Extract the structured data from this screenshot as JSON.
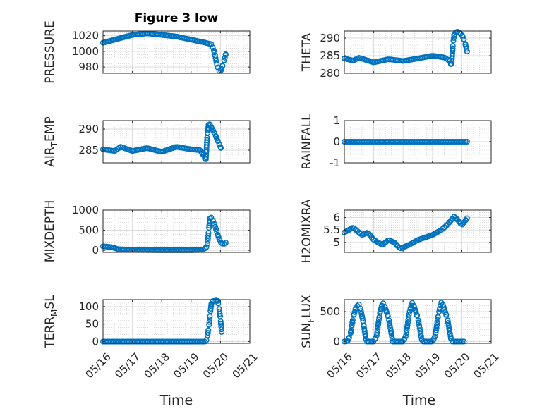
{
  "title": "Figure 3 low",
  "colors": {
    "marker": "#0072BD",
    "axis": "#262626",
    "grid": "#c8c8c8"
  },
  "chart_data": [
    {
      "type": "scatter",
      "ylabel": "PRESSURE",
      "ylim": [
        972,
        1026
      ],
      "yticks": [
        980,
        1000,
        1020
      ],
      "ytick_labels": [
        "980",
        "1000",
        "1020"
      ],
      "show_xticklabels": false,
      "anchors": [
        [
          0,
          1011
        ],
        [
          0.3,
          1014
        ],
        [
          0.6,
          1017
        ],
        [
          1.0,
          1021
        ],
        [
          1.5,
          1023
        ],
        [
          2.0,
          1021
        ],
        [
          2.5,
          1019
        ],
        [
          3.0,
          1015
        ],
        [
          3.5,
          1011
        ],
        [
          3.7,
          1009
        ],
        [
          3.75,
          1004
        ],
        [
          3.8,
          998
        ],
        [
          3.85,
          988
        ],
        [
          3.9,
          980
        ],
        [
          3.95,
          975
        ],
        [
          4.0,
          974
        ],
        [
          4.1,
          985
        ],
        [
          4.2,
          999
        ]
      ]
    },
    {
      "type": "scatter",
      "ylabel": "THETA",
      "ylim": [
        280,
        292
      ],
      "yticks": [
        280,
        285,
        290
      ],
      "ytick_labels": [
        "280",
        "285",
        "290"
      ],
      "show_xticklabels": false,
      "anchors": [
        [
          0,
          284.2
        ],
        [
          0.3,
          283.6
        ],
        [
          0.5,
          284.4
        ],
        [
          1.0,
          283.1
        ],
        [
          1.5,
          284.0
        ],
        [
          2.0,
          283.5
        ],
        [
          2.5,
          284.2
        ],
        [
          3.0,
          285.0
        ],
        [
          3.4,
          284.5
        ],
        [
          3.6,
          283.5
        ],
        [
          3.65,
          282.0
        ],
        [
          3.7,
          288.5
        ],
        [
          3.75,
          291.5
        ],
        [
          3.85,
          291.8
        ],
        [
          4.0,
          291.0
        ],
        [
          4.1,
          289.0
        ],
        [
          4.2,
          285.5
        ]
      ]
    },
    {
      "type": "scatter",
      "ylabel": "AIR_TEMP",
      "ylim": [
        282,
        292
      ],
      "yticks": [
        285,
        290
      ],
      "ytick_labels": [
        "285",
        "290"
      ],
      "show_xticklabels": false,
      "anchors": [
        [
          0,
          285.2
        ],
        [
          0.4,
          284.8
        ],
        [
          0.6,
          285.8
        ],
        [
          1.0,
          284.8
        ],
        [
          1.5,
          285.5
        ],
        [
          2.0,
          284.6
        ],
        [
          2.5,
          285.8
        ],
        [
          3.0,
          285.2
        ],
        [
          3.3,
          285.0
        ],
        [
          3.45,
          283.5
        ],
        [
          3.5,
          282.3
        ],
        [
          3.55,
          288.5
        ],
        [
          3.6,
          291.5
        ],
        [
          3.8,
          289.0
        ],
        [
          3.95,
          286.5
        ],
        [
          4.05,
          285.0
        ]
      ]
    },
    {
      "type": "scatter",
      "ylabel": "RAINFALL",
      "ylim": [
        -1,
        1
      ],
      "yticks": [
        -1,
        0,
        1
      ],
      "ytick_labels": [
        "-1",
        "0",
        "1"
      ],
      "show_xticklabels": false,
      "anchors": [
        [
          0,
          0
        ],
        [
          4.2,
          0
        ]
      ]
    },
    {
      "type": "scatter",
      "ylabel": "MIXDEPTH",
      "ylim": [
        -50,
        1000
      ],
      "yticks": [
        0,
        500,
        1000
      ],
      "ytick_labels": [
        "0",
        "500",
        "1000"
      ],
      "show_xticklabels": false,
      "anchors": [
        [
          0,
          100
        ],
        [
          0.3,
          80
        ],
        [
          0.5,
          30
        ],
        [
          1.0,
          10
        ],
        [
          2.0,
          5
        ],
        [
          3.0,
          5
        ],
        [
          3.4,
          10
        ],
        [
          3.55,
          100
        ],
        [
          3.6,
          500
        ],
        [
          3.65,
          850
        ],
        [
          3.7,
          800
        ],
        [
          3.8,
          650
        ],
        [
          3.9,
          400
        ],
        [
          4.0,
          200
        ],
        [
          4.1,
          150
        ],
        [
          4.2,
          200
        ]
      ]
    },
    {
      "type": "scatter",
      "ylabel": "H2OMIXRA",
      "ylim": [
        4.6,
        6.3
      ],
      "yticks": [
        5,
        5.5,
        6
      ],
      "ytick_labels": [
        "5",
        "5.5",
        "6"
      ],
      "show_xticklabels": false,
      "anchors": [
        [
          0,
          5.4
        ],
        [
          0.3,
          5.6
        ],
        [
          0.6,
          5.3
        ],
        [
          0.8,
          5.4
        ],
        [
          1.0,
          5.1
        ],
        [
          1.3,
          4.9
        ],
        [
          1.5,
          5.1
        ],
        [
          1.7,
          5.0
        ],
        [
          1.9,
          4.75
        ],
        [
          2.2,
          4.9
        ],
        [
          2.5,
          5.1
        ],
        [
          3.0,
          5.3
        ],
        [
          3.3,
          5.5
        ],
        [
          3.5,
          5.7
        ],
        [
          3.75,
          6.05
        ],
        [
          4.0,
          5.7
        ],
        [
          4.2,
          6.0
        ]
      ]
    },
    {
      "type": "scatter",
      "ylabel": "TERR_MSL",
      "ylim": [
        -5,
        120
      ],
      "yticks": [
        0,
        50,
        100
      ],
      "ytick_labels": [
        "0",
        "50",
        "100"
      ],
      "show_xticklabels": true,
      "anchors": [
        [
          0,
          0
        ],
        [
          3.5,
          0
        ],
        [
          3.55,
          10
        ],
        [
          3.6,
          40
        ],
        [
          3.65,
          80
        ],
        [
          3.7,
          115
        ],
        [
          3.9,
          118
        ],
        [
          3.95,
          100
        ],
        [
          4.0,
          65
        ],
        [
          4.05,
          20
        ]
      ]
    },
    {
      "type": "scatter",
      "ylabel": "SUN_FLUX",
      "ylim": [
        -30,
        700
      ],
      "yticks": [
        0,
        500
      ],
      "ytick_labels": [
        "0",
        "500"
      ],
      "show_xticklabels": true,
      "anchors": [
        [
          0,
          0
        ],
        [
          0.1,
          5
        ],
        [
          0.2,
          100
        ],
        [
          0.3,
          400
        ],
        [
          0.4,
          580
        ],
        [
          0.5,
          620
        ],
        [
          0.55,
          550
        ],
        [
          0.65,
          300
        ],
        [
          0.75,
          0
        ],
        [
          1.0,
          0
        ],
        [
          1.1,
          100
        ],
        [
          1.2,
          450
        ],
        [
          1.3,
          650
        ],
        [
          1.35,
          620
        ],
        [
          1.5,
          400
        ],
        [
          1.65,
          0
        ],
        [
          2.0,
          0
        ],
        [
          2.1,
          100
        ],
        [
          2.2,
          450
        ],
        [
          2.3,
          650
        ],
        [
          2.35,
          620
        ],
        [
          2.5,
          400
        ],
        [
          2.65,
          0
        ],
        [
          3.0,
          0
        ],
        [
          3.1,
          100
        ],
        [
          3.2,
          450
        ],
        [
          3.3,
          650
        ],
        [
          3.35,
          620
        ],
        [
          3.5,
          400
        ],
        [
          3.65,
          0
        ],
        [
          4.0,
          0
        ],
        [
          4.1,
          0
        ]
      ]
    }
  ],
  "xaxis": {
    "xlabel": "Time",
    "xlim": [
      0,
      5
    ],
    "xticks": [
      0,
      1,
      2,
      3,
      4,
      5
    ],
    "xtick_labels": [
      "05/16",
      "05/17",
      "05/18",
      "05/19",
      "05/20",
      "05/21"
    ]
  }
}
